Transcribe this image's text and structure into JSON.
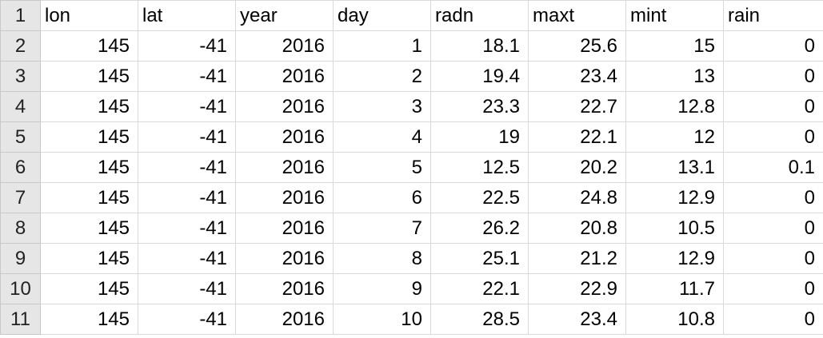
{
  "sheet": {
    "header": {
      "row_number": "1",
      "columns": [
        "lon",
        "lat",
        "year",
        "day",
        "radn",
        "maxt",
        "mint",
        "rain"
      ]
    },
    "rows": [
      {
        "n": "2",
        "cells": [
          "145",
          "-41",
          "2016",
          "1",
          "18.1",
          "25.6",
          "15",
          "0"
        ]
      },
      {
        "n": "3",
        "cells": [
          "145",
          "-41",
          "2016",
          "2",
          "19.4",
          "23.4",
          "13",
          "0"
        ]
      },
      {
        "n": "4",
        "cells": [
          "145",
          "-41",
          "2016",
          "3",
          "23.3",
          "22.7",
          "12.8",
          "0"
        ]
      },
      {
        "n": "5",
        "cells": [
          "145",
          "-41",
          "2016",
          "4",
          "19",
          "22.1",
          "12",
          "0"
        ]
      },
      {
        "n": "6",
        "cells": [
          "145",
          "-41",
          "2016",
          "5",
          "12.5",
          "20.2",
          "13.1",
          "0.1"
        ]
      },
      {
        "n": "7",
        "cells": [
          "145",
          "-41",
          "2016",
          "6",
          "22.5",
          "24.8",
          "12.9",
          "0"
        ]
      },
      {
        "n": "8",
        "cells": [
          "145",
          "-41",
          "2016",
          "7",
          "26.2",
          "20.8",
          "10.5",
          "0"
        ]
      },
      {
        "n": "9",
        "cells": [
          "145",
          "-41",
          "2016",
          "8",
          "25.1",
          "21.2",
          "12.9",
          "0"
        ]
      },
      {
        "n": "10",
        "cells": [
          "145",
          "-41",
          "2016",
          "9",
          "22.1",
          "22.9",
          "11.7",
          "0"
        ]
      },
      {
        "n": "11",
        "cells": [
          "145",
          "-41",
          "2016",
          "10",
          "28.5",
          "23.4",
          "10.8",
          "0"
        ]
      }
    ]
  }
}
